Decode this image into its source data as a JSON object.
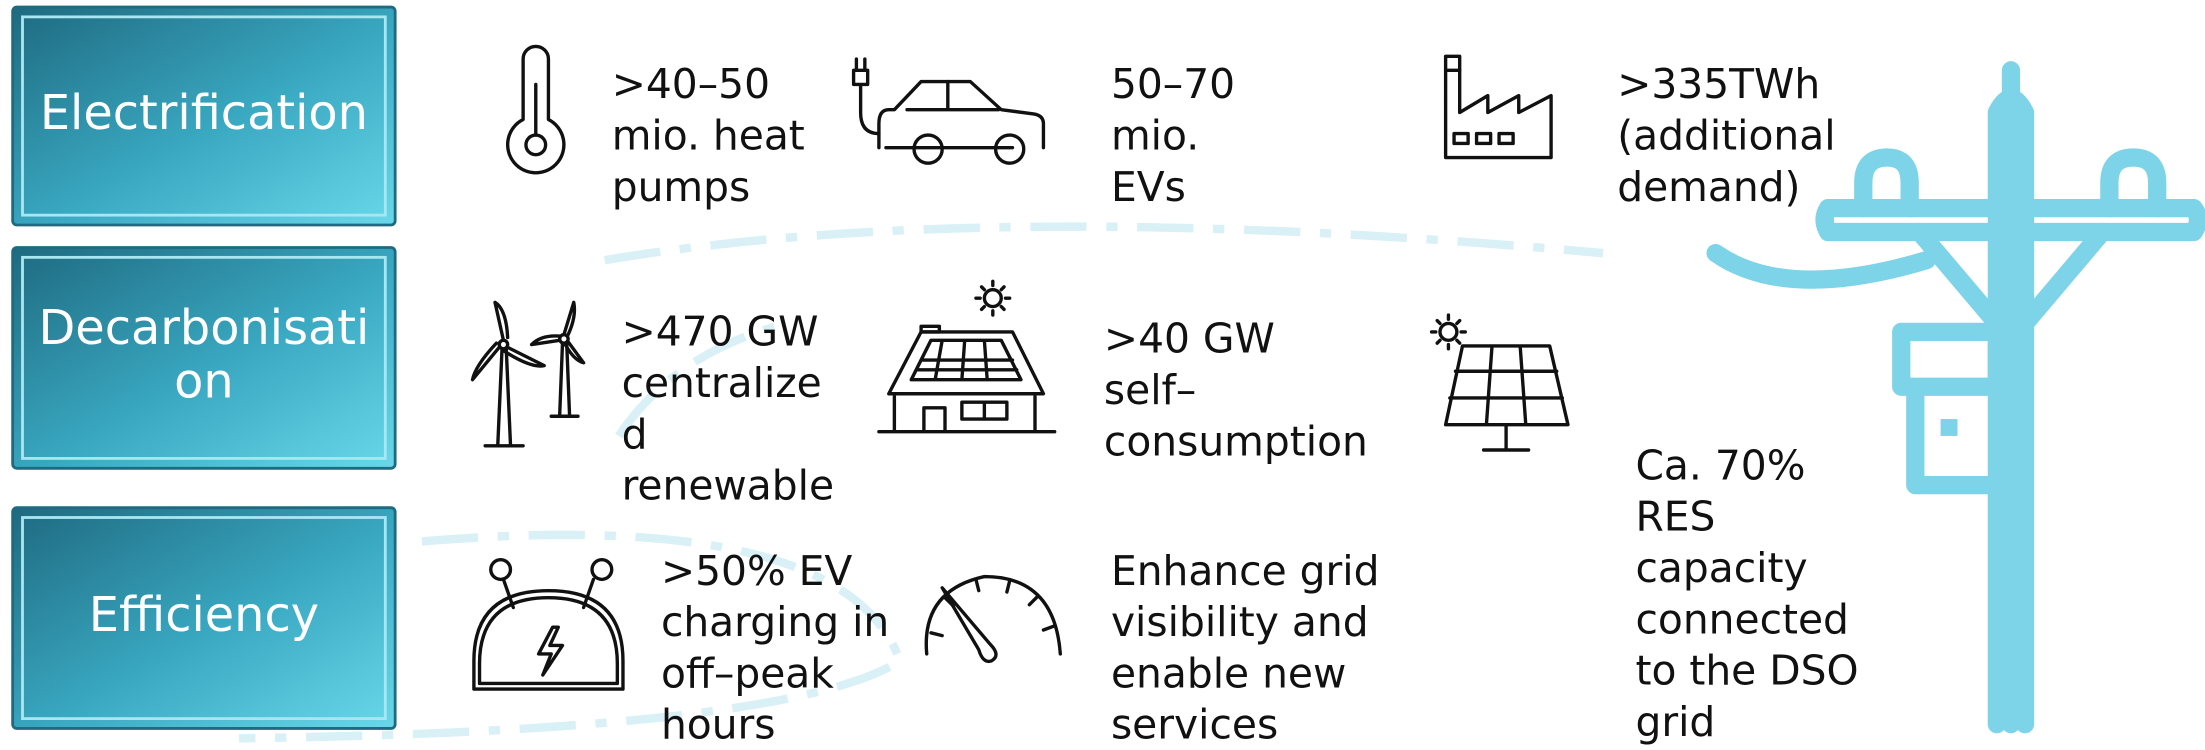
{
  "rows": [
    {
      "label": [
        "Electrification"
      ]
    },
    {
      "label": [
        "Decarbonisati",
        "on"
      ]
    },
    {
      "label": [
        "Efficiency"
      ]
    }
  ],
  "items": [
    {
      "lines": [
        ">40–50",
        "mio. heat",
        "pumps"
      ]
    },
    {
      "lines": [
        "50–70",
        "mio.",
        "EVs"
      ]
    },
    {
      "lines": [
        ">335TWh",
        "(additional",
        "demand)"
      ]
    },
    {
      "lines": [
        ">470 GW",
        "centralize",
        "d",
        "renewable"
      ]
    },
    {
      "lines": [
        ">40 GW",
        "self–",
        "consumption"
      ]
    },
    {
      "lines": [
        "Ca. 70%",
        "RES",
        "capacity",
        "connected",
        "to the DSO",
        "grid"
      ]
    },
    {
      "lines": [
        ">50% EV",
        "charging in",
        "off–peak",
        "hours"
      ]
    },
    {
      "lines": [
        "Enhance grid",
        "visibility and",
        "enable new",
        "services"
      ]
    }
  ]
}
